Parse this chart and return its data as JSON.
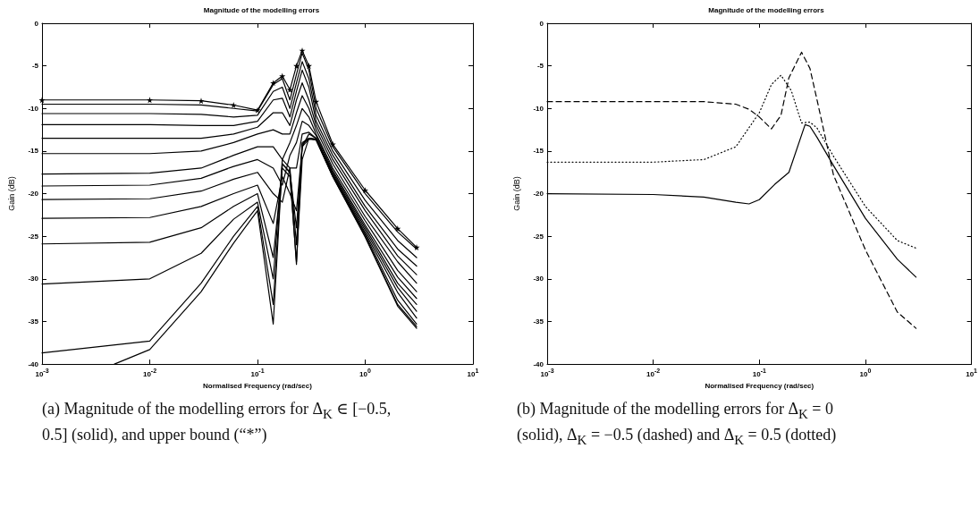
{
  "chart_data": [
    {
      "type": "line",
      "title": "Magnitude of the modelling errors",
      "xlabel": "Normalised Frequency (rad/sec)",
      "ylabel": "Gain (dB)",
      "log": "x",
      "grid": false,
      "line_style": "solid",
      "marker": "none",
      "xlim": [
        0.001,
        10
      ],
      "xticks": [
        {
          "value": 0.001,
          "label": "10$^{-3}$"
        },
        {
          "value": 0.01,
          "label": "10$^{-2}$"
        },
        {
          "value": 0.1,
          "label": "10$^{-1}$"
        },
        {
          "value": 1,
          "label": "10$^{0}$"
        },
        {
          "value": 10,
          "label": "10$^{1}$"
        }
      ],
      "ylim": [
        -40,
        0
      ],
      "yticks": [
        -40,
        -35,
        -30,
        -25,
        -20,
        -15,
        -10,
        -5,
        0
      ],
      "x": [
        0.001,
        0.01,
        0.03,
        0.06,
        0.1,
        0.14,
        0.17,
        0.2,
        0.23,
        0.26,
        0.3,
        0.35,
        0.5,
        1,
        2,
        3
      ],
      "series": [
        {
          "color": "#000000",
          "marker": "star",
          "values": [
            -9,
            -9,
            -9.1,
            -9.6,
            -10.2,
            -7,
            -6.2,
            -7.8,
            -5,
            -3.2,
            -5,
            -9.2,
            -14.2,
            -19.6,
            -24.1,
            -26.3
          ]
        },
        {
          "color": "#000000",
          "values": [
            -9.5,
            -9.5,
            -9.6,
            -10,
            -10.3,
            -7.2,
            -6.5,
            -9,
            -6,
            -3.5,
            -5.5,
            -10,
            -14.5,
            -20,
            -24.5,
            -26.5
          ]
        },
        {
          "color": "#000000",
          "values": [
            -10.6,
            -10.6,
            -10.7,
            -11,
            -10.8,
            -8,
            -7.5,
            -10,
            -7,
            -4.5,
            -6.5,
            -10.8,
            -15,
            -20.8,
            -25.5,
            -27.5
          ]
        },
        {
          "color": "#000000",
          "values": [
            -11.9,
            -11.9,
            -12,
            -12,
            -11.5,
            -9,
            -8.8,
            -11,
            -8,
            -5.5,
            -7.5,
            -11.5,
            -15.5,
            -21.5,
            -26.5,
            -28.5
          ]
        },
        {
          "color": "#000000",
          "values": [
            -13.5,
            -13.5,
            -13.5,
            -13,
            -12.2,
            -10.5,
            -10.5,
            -12,
            -9,
            -7,
            -9,
            -12,
            -16,
            -22,
            -27.3,
            -29.5
          ]
        },
        {
          "color": "#000000",
          "values": [
            -15.3,
            -15.3,
            -15,
            -14,
            -13,
            -12.5,
            -13,
            -13,
            -10.5,
            -8.5,
            -10,
            -12.5,
            -16.5,
            -22.7,
            -28,
            -30.5
          ]
        },
        {
          "color": "#000000",
          "values": [
            -17.7,
            -17.6,
            -17,
            -15.5,
            -14.5,
            -14.5,
            -16,
            -14,
            -12,
            -10,
            -11,
            -13,
            -17,
            -23.2,
            -29,
            -31.5
          ]
        },
        {
          "color": "#000000",
          "values": [
            -19.1,
            -19,
            -18.2,
            -16.8,
            -16,
            -17,
            -19,
            -15.5,
            -14,
            -11.5,
            -12,
            -13.2,
            -17.3,
            -23.7,
            -29.8,
            -32.3
          ]
        },
        {
          "color": "#000000",
          "values": [
            -20.7,
            -20.6,
            -19.7,
            -18.3,
            -17.5,
            -20,
            -21,
            -17,
            -17,
            -13,
            -12.8,
            -13.5,
            -17.5,
            -24,
            -30.5,
            -33
          ]
        },
        {
          "color": "#000000",
          "values": [
            -22.9,
            -22.8,
            -21.5,
            -20,
            -19,
            -23.5,
            -18,
            -20,
            -22,
            -14.5,
            -13,
            -13.5,
            -17.7,
            -24.3,
            -31,
            -33.8
          ]
        },
        {
          "color": "#000000",
          "values": [
            -25.9,
            -25.7,
            -24,
            -21.5,
            -20,
            -27.5,
            -17,
            -18,
            -28,
            -16,
            -13.5,
            -13.6,
            -17.8,
            -24.6,
            -31.6,
            -34.6
          ]
        },
        {
          "color": "#000000",
          "values": [
            -30.6,
            -30,
            -27,
            -23,
            -21,
            -30,
            -16,
            -17,
            -26,
            -14,
            -13.5,
            -13.6,
            -17.9,
            -24.8,
            -32.5,
            -35.3
          ]
        },
        {
          "color": "#000000",
          "values": [
            -38.7,
            -37.3,
            -30.5,
            -25,
            -21.5,
            -33,
            -16.5,
            -17.5,
            -24,
            -14.5,
            -13.6,
            -13.7,
            -18,
            -25,
            -33,
            -35.6
          ]
        },
        {
          "color": "#000000",
          "x": [
            0.0047,
            0.01,
            0.03,
            0.06,
            0.1,
            0.14,
            0.17,
            0.2,
            0.23,
            0.26,
            0.3,
            0.35,
            0.5,
            1,
            2,
            3
          ],
          "values": [
            -40,
            -38.3,
            -31.5,
            -25.8,
            -22,
            -35.3,
            -16.5,
            -17.5,
            -28.3,
            -14.2,
            -13.5,
            -13.7,
            -18,
            -25.1,
            -33.2,
            -35.8
          ]
        }
      ],
      "annotations": [
        "(a) Magnitude of the modelling errors for Δ$_{K}$ ∈ [−0.5, 0.5] (solid), and upper bound (“*”)"
      ]
    },
    {
      "type": "line",
      "title": "Magnitude of the modelling errors",
      "xlabel": "Normalised Frequency (rad/sec)",
      "ylabel": "Gain (dB)",
      "log": "x",
      "grid": false,
      "marker": "none",
      "xlim": [
        0.001,
        10
      ],
      "xticks": [
        {
          "value": 0.001,
          "label": "10$^{-3}$"
        },
        {
          "value": 0.01,
          "label": "10$^{-2}$"
        },
        {
          "value": 0.1,
          "label": "10$^{-1}$"
        },
        {
          "value": 1,
          "label": "10$^{0}$"
        },
        {
          "value": 10,
          "label": "10$^{1}$"
        }
      ],
      "ylim": [
        -40,
        0
      ],
      "yticks": [
        -40,
        -35,
        -30,
        -25,
        -20,
        -15,
        -10,
        -5,
        0
      ],
      "series": [
        {
          "color": "#000000",
          "line_style": "solid",
          "x": [
            0.001,
            0.01,
            0.03,
            0.06,
            0.08,
            0.1,
            0.14,
            0.19,
            0.27,
            0.3,
            0.35,
            0.5,
            1,
            2,
            3
          ],
          "values": [
            -20,
            -20.1,
            -20.4,
            -21,
            -21.2,
            -20.7,
            -18.9,
            -17.5,
            -11.9,
            -12.1,
            -13.4,
            -16.7,
            -22.9,
            -27.7,
            -29.8
          ]
        },
        {
          "color": "#000000",
          "line_style": "dashed",
          "x": [
            0.001,
            0.01,
            0.03,
            0.06,
            0.08,
            0.1,
            0.13,
            0.16,
            0.19,
            0.25,
            0.3,
            0.35,
            0.5,
            1,
            2,
            3
          ],
          "values": [
            -9.2,
            -9.2,
            -9.2,
            -9.5,
            -10.1,
            -11,
            -12.4,
            -10.8,
            -6.4,
            -3.4,
            -5.3,
            -9,
            -17.8,
            -26.6,
            -33.9,
            -35.8
          ]
        },
        {
          "color": "#000000",
          "line_style": "dotted",
          "x": [
            0.001,
            0.01,
            0.03,
            0.06,
            0.1,
            0.13,
            0.16,
            0.2,
            0.25,
            0.3,
            0.35,
            0.5,
            1,
            2,
            3
          ],
          "values": [
            -16.3,
            -16.3,
            -16,
            -14.5,
            -10.5,
            -7.2,
            -6.1,
            -7.9,
            -11.7,
            -11.6,
            -12.3,
            -15.6,
            -21.5,
            -25.5,
            -26.4
          ]
        }
      ],
      "annotations": [
        "(b) Magnitude of the modelling errors for Δ$_{K}$ = 0 (solid), Δ$_{K}$ = −0.5 (dashed) and Δ$_{K}$ = 0.5 (dotted)"
      ]
    }
  ]
}
